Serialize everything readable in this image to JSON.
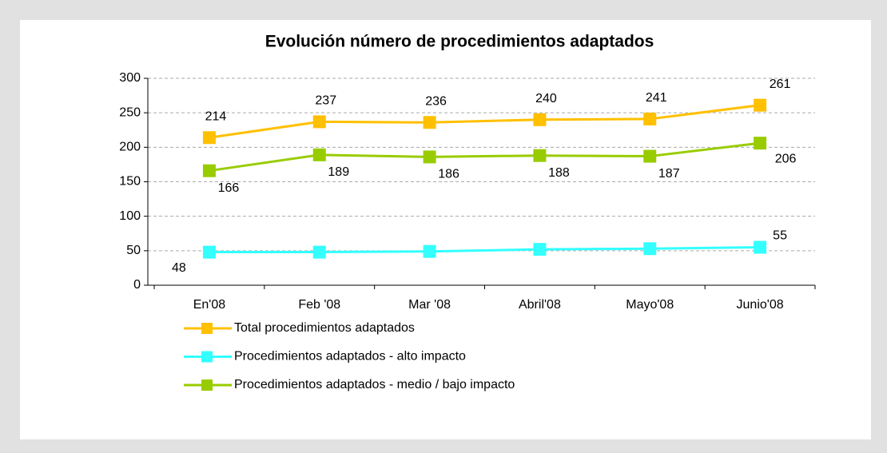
{
  "chart_data": {
    "type": "line",
    "title": "Evolución número de procedimientos adaptados",
    "categories": [
      "En'08",
      "Feb '08",
      "Mar '08",
      "Abril'08",
      "Mayo'08",
      "Junio'08"
    ],
    "series": [
      {
        "name": "Total procedimientos adaptados",
        "color": "#ffc000",
        "values": [
          214,
          237,
          236,
          240,
          241,
          261
        ]
      },
      {
        "name": "Procedimientos adaptados - alto impacto",
        "color": "#33ffff",
        "values": [
          48,
          48,
          49,
          52,
          53,
          55
        ],
        "value_labels": [
          "48",
          null,
          null,
          null,
          null,
          "55"
        ]
      },
      {
        "name": "Procedimientos adaptados - medio / bajo impacto",
        "color": "#99cc00",
        "values": [
          166,
          189,
          186,
          188,
          187,
          206
        ]
      }
    ],
    "ylim": [
      0,
      300
    ],
    "yticks": [
      0,
      50,
      100,
      150,
      200,
      250,
      300
    ],
    "grid": true
  }
}
